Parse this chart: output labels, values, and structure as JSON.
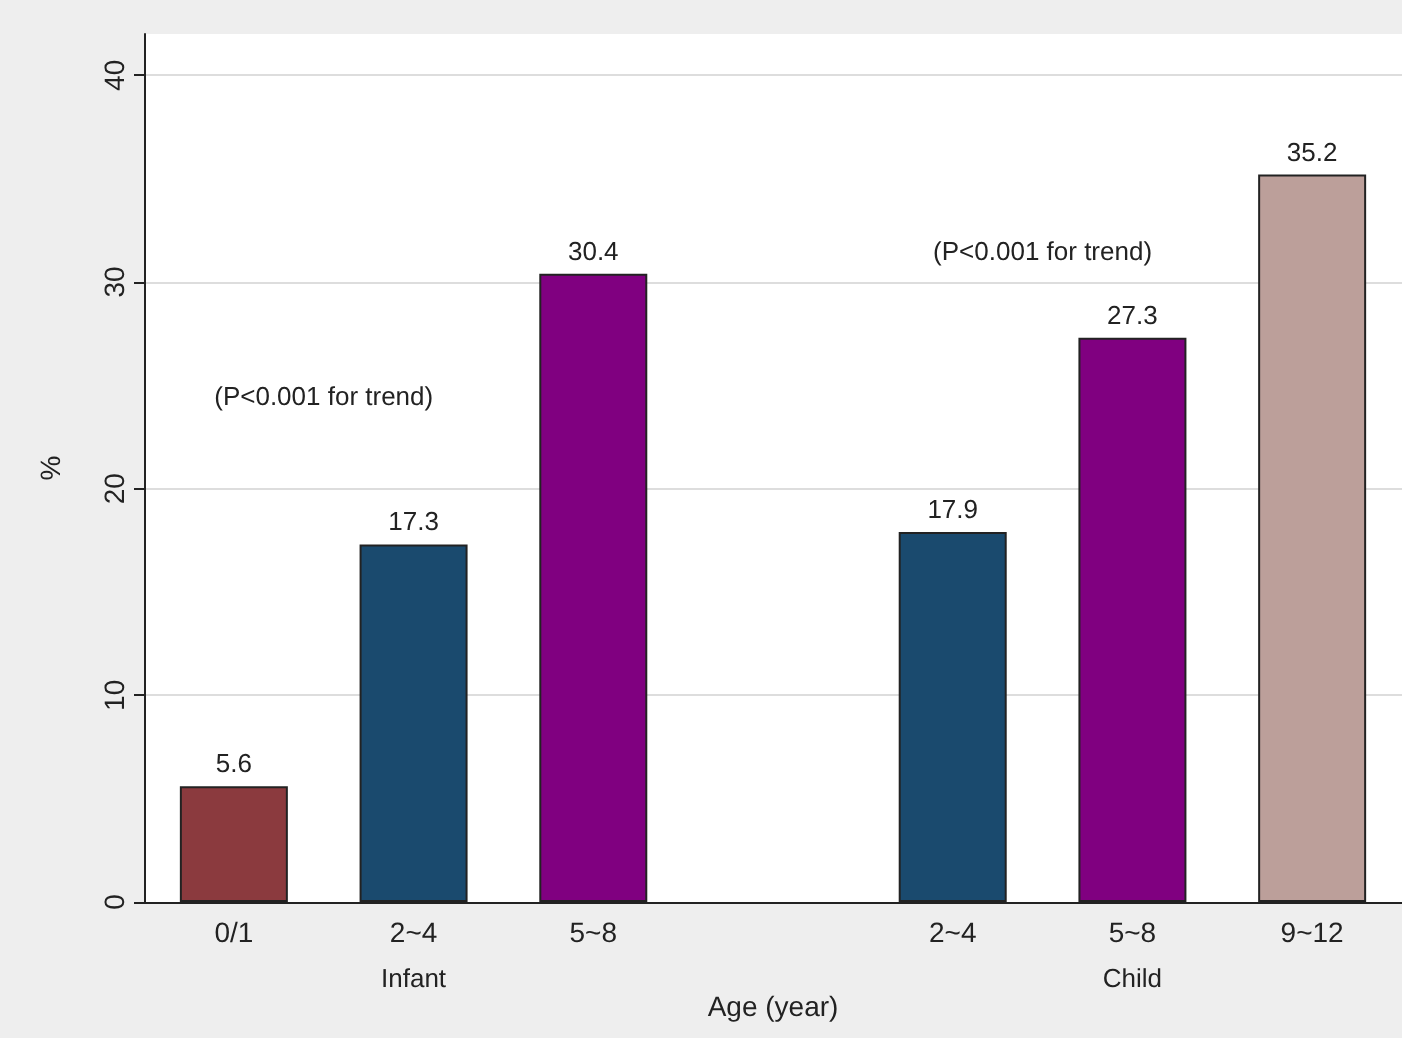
{
  "chart_data": {
    "type": "bar",
    "xlabel": "Age (year)",
    "ylabel": "%",
    "categories": [
      "0/1",
      "2~4",
      "5~8",
      null,
      "2~4",
      "5~8",
      "9~12"
    ],
    "values": [
      5.6,
      17.3,
      30.4,
      null,
      17.9,
      27.3,
      35.2
    ],
    "colors": [
      "#8b3a3e",
      "#1a4a6e",
      "#800080",
      null,
      "#1a4a6e",
      "#800080",
      "#bc9f9a"
    ],
    "ylim": [
      0,
      42
    ],
    "yticks": [
      0,
      10,
      20,
      30,
      40
    ],
    "grid": "y",
    "data_labels": true,
    "annotations": [
      "Infant",
      "Child",
      "(P<0.001 for trend)",
      "(P<0.001 for trend)"
    ]
  }
}
